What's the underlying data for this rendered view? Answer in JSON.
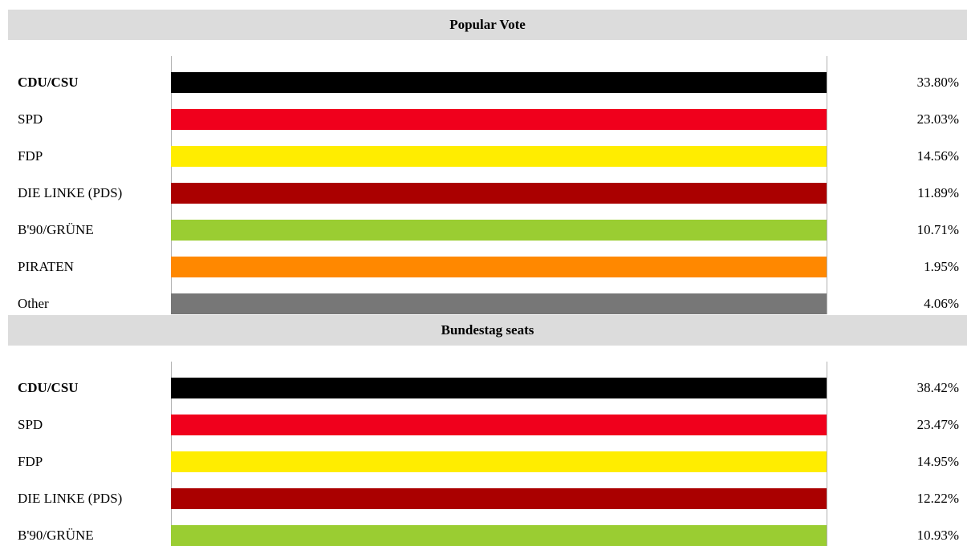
{
  "colors": {
    "header_bg": "#dcdcdc",
    "CDU/CSU": "#000000",
    "SPD": "#f0001c",
    "FDP": "#ffed00",
    "DIE LINKE (PDS)": "#aa0000",
    "B'90/GRÜNE": "#9acd32",
    "PIRATEN": "#ff8800",
    "Other": "#777777"
  },
  "chart_data": [
    {
      "type": "bar",
      "title": "Popular Vote",
      "categories": [
        "CDU/CSU",
        "SPD",
        "FDP",
        "DIE LINKE (PDS)",
        "B'90/GRÜNE",
        "PIRATEN",
        "Other"
      ],
      "values": [
        33.8,
        23.03,
        14.56,
        11.89,
        10.71,
        1.95,
        4.06
      ],
      "value_labels": [
        "33.80%",
        "23.03%",
        "14.56%",
        "11.89%",
        "10.71%",
        "1.95%",
        "4.06%"
      ],
      "bold_categories": [
        "CDU/CSU"
      ],
      "unit": "%"
    },
    {
      "type": "bar",
      "title": "Bundestag seats",
      "categories": [
        "CDU/CSU",
        "SPD",
        "FDP",
        "DIE LINKE (PDS)",
        "B'90/GRÜNE"
      ],
      "values": [
        38.42,
        23.47,
        14.95,
        12.22,
        10.93
      ],
      "value_labels": [
        "38.42%",
        "23.47%",
        "14.95%",
        "12.22%",
        "10.93%"
      ],
      "bold_categories": [
        "CDU/CSU"
      ],
      "unit": "%"
    }
  ]
}
